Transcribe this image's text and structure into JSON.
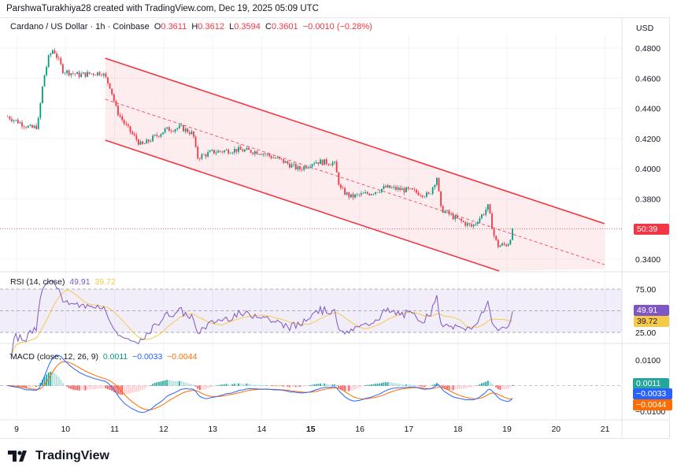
{
  "header": {
    "attribution": "ParshwaTurakhiya28 created with TradingView.com, Dec 19, 2025 05:09 UTC"
  },
  "legend": {
    "symbol": "Cardano / US Dollar · 1h · Coinbase",
    "o_label": "O",
    "o": "0.3611",
    "h_label": "H",
    "h": "0.3612",
    "l_label": "L",
    "l": "0.3594",
    "c_label": "C",
    "c": "0.3601",
    "change": "−0.0010 (−0.28%)"
  },
  "price_axis": {
    "currency": "USD",
    "ticks": [
      "0.4800",
      "0.4600",
      "0.4400",
      "0.4200",
      "0.4000",
      "0.3800",
      "0.3400"
    ],
    "tick_values": [
      0.48,
      0.46,
      0.44,
      0.42,
      0.4,
      0.38,
      0.34
    ],
    "countdown": "50:39",
    "last_price": 0.3601
  },
  "rsi": {
    "label": "RSI (14, close)",
    "value": "49.91",
    "ma": "39.72",
    "ticks": [
      "75.00",
      "25.00"
    ]
  },
  "macd": {
    "label": "MACD (close, 12, 26, 9)",
    "hist": "0.0011",
    "macd": "−0.0033",
    "signal": "−0.0044",
    "ticks": [
      "0.0100",
      "−0.0100"
    ]
  },
  "time_axis": {
    "labels": [
      "9",
      "10",
      "11",
      "12",
      "13",
      "14",
      "15",
      "16",
      "17",
      "18",
      "19",
      "20",
      "21"
    ]
  },
  "logo": {
    "text": "TradingView"
  },
  "colors": {
    "up": "#089981",
    "down": "#f23645",
    "rsi": "#7e57c2",
    "rsi_ma": "#f7c948",
    "macd": "#2962ff",
    "signal": "#ff6d00",
    "channel": "#f23645"
  },
  "chart_data": {
    "type": "candlestick",
    "interval": "1h",
    "price_path": [
      [
        8.82,
        0.4346
      ],
      [
        9.3,
        0.4267
      ],
      [
        9.43,
        0.4283
      ],
      [
        9.55,
        0.4596
      ],
      [
        9.66,
        0.4743
      ],
      [
        9.75,
        0.4795
      ],
      [
        9.95,
        0.4649
      ],
      [
        10.27,
        0.4622
      ],
      [
        10.75,
        0.4638
      ],
      [
        10.91,
        0.4544
      ],
      [
        11.04,
        0.4387
      ],
      [
        11.23,
        0.4283
      ],
      [
        11.55,
        0.4152
      ],
      [
        11.79,
        0.4205
      ],
      [
        12.03,
        0.4257
      ],
      [
        12.35,
        0.4273
      ],
      [
        12.6,
        0.4231
      ],
      [
        12.68,
        0.4074
      ],
      [
        13.0,
        0.4111
      ],
      [
        13.48,
        0.4126
      ],
      [
        13.96,
        0.4111
      ],
      [
        14.44,
        0.4048
      ],
      [
        14.76,
        0.3996
      ],
      [
        15.08,
        0.4048
      ],
      [
        15.48,
        0.4038
      ],
      [
        15.6,
        0.3865
      ],
      [
        15.81,
        0.3813
      ],
      [
        16.21,
        0.3839
      ],
      [
        16.53,
        0.3876
      ],
      [
        17.01,
        0.3855
      ],
      [
        17.41,
        0.3823
      ],
      [
        17.57,
        0.3944
      ],
      [
        17.65,
        0.3735
      ],
      [
        17.97,
        0.3667
      ],
      [
        18.29,
        0.3615
      ],
      [
        18.53,
        0.3709
      ],
      [
        18.61,
        0.375
      ],
      [
        18.74,
        0.3552
      ],
      [
        18.81,
        0.3489
      ],
      [
        19.02,
        0.35
      ],
      [
        19.13,
        0.3604
      ]
    ],
    "channel": {
      "upper": [
        [
          10.81,
          0.4732
        ],
        [
          20.99,
          0.3636
        ]
      ],
      "lower": [
        [
          10.81,
          0.4189
        ],
        [
          18.84,
          0.3322
        ]
      ]
    },
    "ylim": [
      0.329,
      0.486
    ],
    "xlim": [
      8.8,
      21.4
    ]
  }
}
